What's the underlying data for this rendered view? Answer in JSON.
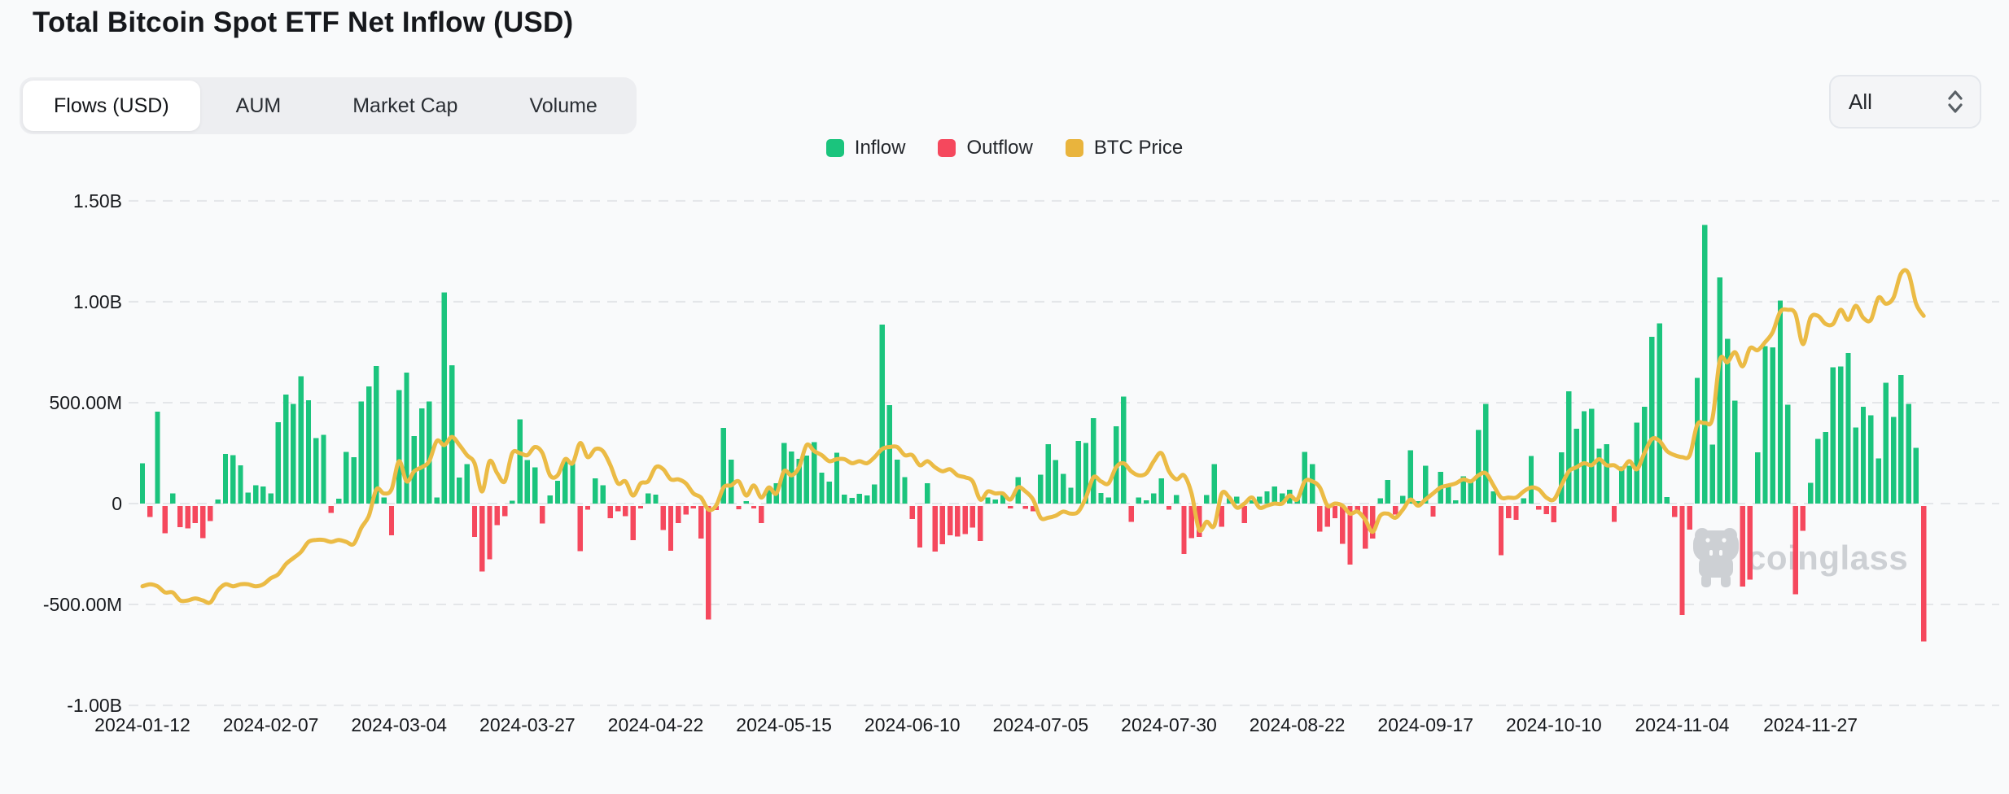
{
  "page": {
    "title": "Total Bitcoin Spot ETF Net Inflow (USD)"
  },
  "tabs": {
    "items": [
      {
        "label": "Flows (USD)",
        "active": true
      },
      {
        "label": "AUM",
        "active": false
      },
      {
        "label": "Market Cap",
        "active": false
      },
      {
        "label": "Volume",
        "active": false
      }
    ]
  },
  "range_selector": {
    "value": "All",
    "icon": "chevron-up-down-icon"
  },
  "legend": {
    "items": [
      {
        "label": "Inflow",
        "color": "#1bc47d"
      },
      {
        "label": "Outflow",
        "color": "#f5485d"
      },
      {
        "label": "BTC Price",
        "color": "#e9b43d"
      }
    ]
  },
  "watermark": {
    "text": "coinglass",
    "icon": "hippo-logo-icon"
  },
  "chart_data": {
    "type": "bar",
    "subtype": "combo_bar_line",
    "title": "Total Bitcoin Spot ETF Net Inflow (USD)",
    "grid": "horizontal dashed",
    "legend_position": "top-center",
    "y_axis": {
      "unit": "USD",
      "range_b": [
        -1.0,
        1.5
      ],
      "ticks": [
        {
          "value_b": 1.5,
          "label": "1.50B"
        },
        {
          "value_b": 1.0,
          "label": "1.00B"
        },
        {
          "value_b": 0.5,
          "label": "500.00M"
        },
        {
          "value_b": 0.0,
          "label": "0"
        },
        {
          "value_b": -0.5,
          "label": "-500.00M"
        },
        {
          "value_b": -1.0,
          "label": "-1.00B"
        }
      ]
    },
    "x_axis": {
      "type": "category-trading-days",
      "tick_labels": [
        {
          "index": 0,
          "label": "2024-01-12"
        },
        {
          "index": 17,
          "label": "2024-02-07"
        },
        {
          "index": 34,
          "label": "2024-03-04"
        },
        {
          "index": 51,
          "label": "2024-03-27"
        },
        {
          "index": 68,
          "label": "2024-04-22"
        },
        {
          "index": 85,
          "label": "2024-05-15"
        },
        {
          "index": 102,
          "label": "2024-06-10"
        },
        {
          "index": 119,
          "label": "2024-07-05"
        },
        {
          "index": 136,
          "label": "2024-07-30"
        },
        {
          "index": 153,
          "label": "2024-08-22"
        },
        {
          "index": 170,
          "label": "2024-09-17"
        },
        {
          "index": 187,
          "label": "2024-10-10"
        },
        {
          "index": 204,
          "label": "2024-11-04"
        },
        {
          "index": 221,
          "label": "2024-11-27"
        }
      ]
    },
    "series": [
      {
        "name": "Net Flow",
        "type": "bar",
        "unit": "million USD",
        "color_positive": "#1bc47d",
        "color_negative": "#f5485d",
        "values": [
          200,
          -55,
          455,
          -135,
          50,
          -105,
          -110,
          -85,
          -160,
          -75,
          20,
          245,
          240,
          190,
          55,
          90,
          85,
          50,
          403,
          541,
          493,
          631,
          512,
          324,
          341,
          -35,
          25,
          256,
          230,
          505,
          580,
          682,
          30,
          -145,
          563,
          648,
          335,
          472,
          505,
          30,
          1045,
          685,
          128,
          196,
          -154,
          -325,
          -263,
          -94,
          -51,
          15,
          418,
          215,
          179,
          -86,
          40,
          113,
          213,
          203,
          -224,
          -19,
          124,
          91,
          -60,
          -26,
          -51,
          -170,
          -9,
          51,
          45,
          -119,
          -222,
          -85,
          -43,
          -5,
          -162,
          -563,
          -20,
          375,
          217,
          -16,
          11,
          -11,
          -85,
          66,
          100,
          300,
          257,
          221,
          237,
          305,
          154,
          108,
          252,
          45,
          28,
          48,
          40,
          94,
          887,
          488,
          217,
          131,
          -65,
          -205,
          100,
          -226,
          -190,
          -146,
          -152,
          -140,
          -106,
          -174,
          31,
          21,
          45,
          -12,
          130,
          -14,
          -26,
          143,
          295,
          216,
          148,
          79,
          310,
          301,
          423,
          53,
          31,
          383,
          530,
          -78,
          31,
          17,
          51,
          124,
          -18,
          43,
          -237,
          -160,
          -154,
          43,
          196,
          -102,
          26,
          34,
          -85,
          17,
          34,
          60,
          85,
          51,
          68,
          20,
          256,
          196,
          -127,
          -102,
          -60,
          -188,
          -290,
          -34,
          -211,
          -162,
          26,
          117,
          -43,
          39,
          263,
          13,
          187,
          -52,
          158,
          92,
          17,
          136,
          106,
          365,
          494,
          61,
          -243,
          -60,
          -68,
          26,
          235,
          -19,
          -40,
          -81,
          253,
          556,
          371,
          458,
          470,
          273,
          294,
          -79,
          184,
          188,
          402,
          479,
          827,
          893,
          32,
          -55,
          -541,
          -117,
          622,
          1380,
          293,
          1120,
          817,
          510,
          -400,
          -365,
          254,
          780,
          773,
          1005,
          490,
          -438,
          -123,
          103,
          320,
          354,
          676,
          680,
          745,
          377,
          479,
          437,
          223,
          598,
          429,
          636,
          493,
          277,
          -672
        ]
      },
      {
        "name": "BTC Price",
        "type": "line",
        "color": "#ebbb45",
        "axis_note": "price axis not labeled; values given in left-axis B units as drawn",
        "values_busd": [
          -0.41,
          -0.4,
          -0.41,
          -0.44,
          -0.44,
          -0.48,
          -0.48,
          -0.47,
          -0.48,
          -0.49,
          -0.43,
          -0.4,
          -0.41,
          -0.4,
          -0.4,
          -0.41,
          -0.4,
          -0.37,
          -0.35,
          -0.3,
          -0.27,
          -0.24,
          -0.19,
          -0.18,
          -0.18,
          -0.19,
          -0.18,
          -0.19,
          -0.2,
          -0.12,
          -0.06,
          0.07,
          0.05,
          0.07,
          0.21,
          0.11,
          0.16,
          0.18,
          0.21,
          0.31,
          0.29,
          0.33,
          0.29,
          0.24,
          0.2,
          0.06,
          0.21,
          0.15,
          0.11,
          0.25,
          0.25,
          0.24,
          0.28,
          0.25,
          0.14,
          0.14,
          0.22,
          0.2,
          0.3,
          0.23,
          0.27,
          0.26,
          0.19,
          0.1,
          0.11,
          0.04,
          0.1,
          0.11,
          0.18,
          0.17,
          0.12,
          0.12,
          0.1,
          0.05,
          0.03,
          -0.03,
          -0.01,
          0.08,
          0.09,
          0.11,
          0.04,
          0.09,
          0.03,
          0.08,
          0.05,
          0.16,
          0.14,
          0.18,
          0.29,
          0.26,
          0.24,
          0.21,
          0.22,
          0.22,
          0.2,
          0.21,
          0.2,
          0.23,
          0.27,
          0.28,
          0.28,
          0.24,
          0.24,
          0.19,
          0.21,
          0.18,
          0.16,
          0.17,
          0.14,
          0.13,
          0.11,
          0.02,
          0.06,
          0.05,
          0.05,
          0.02,
          0.08,
          0.06,
          0.02,
          -0.07,
          -0.07,
          -0.06,
          -0.04,
          -0.05,
          -0.04,
          0.03,
          0.13,
          0.11,
          0.1,
          0.18,
          0.2,
          0.16,
          0.14,
          0.15,
          0.21,
          0.25,
          0.16,
          0.12,
          0.14,
          0.05,
          -0.13,
          -0.09,
          -0.11,
          0.05,
          0.03,
          -0.02,
          0.0,
          0.03,
          -0.02,
          -0.01,
          0.0,
          0.0,
          0.04,
          0.02,
          0.11,
          0.11,
          0.08,
          -0.01,
          0.0,
          -0.01,
          -0.05,
          -0.04,
          -0.08,
          -0.14,
          -0.06,
          -0.05,
          -0.07,
          -0.03,
          0.02,
          -0.01,
          0.02,
          0.05,
          0.08,
          0.09,
          0.1,
          0.12,
          0.11,
          0.14,
          0.15,
          0.09,
          0.03,
          0.03,
          0.03,
          0.06,
          0.08,
          0.07,
          0.03,
          0.02,
          0.09,
          0.16,
          0.18,
          0.2,
          0.19,
          0.22,
          0.19,
          0.19,
          0.17,
          0.21,
          0.17,
          0.25,
          0.32,
          0.31,
          0.26,
          0.24,
          0.23,
          0.24,
          0.39,
          0.4,
          0.42,
          0.71,
          0.7,
          0.75,
          0.68,
          0.77,
          0.76,
          0.8,
          0.85,
          0.95,
          0.96,
          0.94,
          0.79,
          0.92,
          0.93,
          0.89,
          0.89,
          0.96,
          0.91,
          0.98,
          0.92,
          0.91,
          1.02,
          0.99,
          1.02,
          1.14,
          1.14,
          0.99,
          0.93
        ]
      }
    ]
  }
}
